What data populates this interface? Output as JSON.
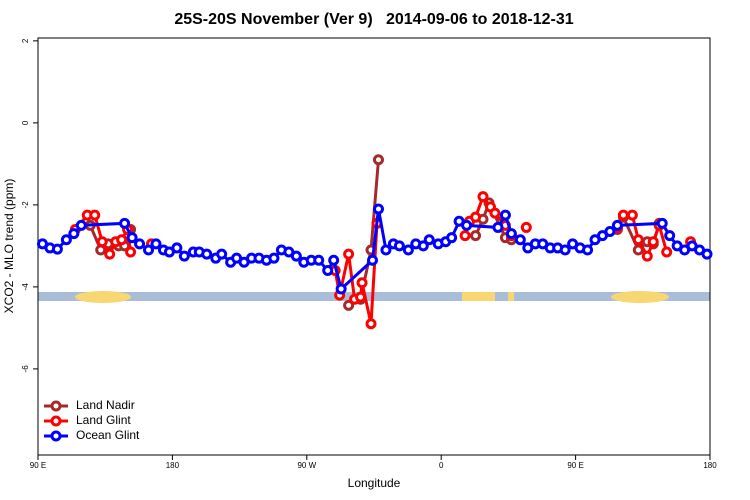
{
  "chart_data": {
    "type": "line",
    "title": "25S-20S November (Ver 9)   2014-09-06 to 2018-12-31",
    "x_label": "Longitude",
    "y_label": "XCO2 - MLO trend (ppm)",
    "xlim": [
      90,
      540
    ],
    "ylim": [
      -8.1,
      2.07
    ],
    "xticks": [
      {
        "value": 90,
        "label": "90 E"
      },
      180,
      {
        "value": 270,
        "label": "90 W"
      },
      {
        "value": 360,
        "label": "0"
      },
      {
        "value": 450,
        "label": "90 E"
      },
      {
        "value": 540,
        "label": "180"
      }
    ],
    "yticks": [
      -6,
      -4,
      -2,
      0,
      2
    ],
    "legend": "bottom-left",
    "series": [
      {
        "name": "Land Nadir",
        "color": "#a52a2a",
        "x": [
          125,
          132,
          137,
          144,
          148,
          152,
          null,
          298,
          306,
          313,
          318,
          null,
          383,
          388,
          392,
          403,
          407,
          null,
          478,
          482,
          492,
          498,
          502,
          506
        ],
        "values": [
          -2.5,
          -3.1,
          -2.95,
          -3.0,
          -3.0,
          -2.6,
          null,
          -4.45,
          -4.3,
          -3.1,
          -0.9,
          null,
          -2.75,
          -2.35,
          -1.95,
          -2.8,
          -2.85,
          null,
          -2.6,
          -2.3,
          -3.1,
          -2.9,
          -2.95,
          -2.45
        ]
      },
      {
        "name": "Land Glint",
        "color": "#ff0000",
        "x": [
          115,
          123,
          128,
          133,
          138,
          142,
          146,
          150,
          152,
          null,
          166,
          null,
          289,
          292,
          298,
          302,
          306,
          307,
          313,
          317,
          null,
          376,
          379,
          383,
          388,
          393,
          396,
          403,
          407,
          null,
          417,
          null,
          478,
          482,
          488,
          492,
          498,
          502,
          506,
          511,
          null,
          527
        ],
        "values": [
          -2.6,
          -2.25,
          -2.25,
          -2.9,
          -3.2,
          -2.9,
          -2.85,
          -2.6,
          -3.15,
          null,
          -2.95,
          null,
          -3.6,
          -4.2,
          -3.2,
          -4.3,
          -4.25,
          -3.9,
          -4.9,
          -2.45,
          null,
          -2.75,
          -2.4,
          -2.3,
          -1.8,
          -2.05,
          -2.2,
          -2.5,
          -2.75,
          null,
          -2.55,
          null,
          -2.55,
          -2.25,
          -2.25,
          -2.85,
          -3.25,
          -2.9,
          -2.5,
          -3.15,
          null,
          -2.9
        ]
      },
      {
        "name": "Ocean Glint",
        "color": "#0000ff",
        "x": [
          93,
          98,
          103,
          109,
          114,
          119,
          148,
          153,
          158,
          164,
          169,
          174,
          178,
          183,
          188,
          194,
          198,
          203,
          209,
          213,
          219,
          223,
          228,
          233,
          238,
          243,
          248,
          253,
          258,
          263,
          268,
          273,
          278,
          284,
          288,
          293,
          314,
          318,
          323,
          328,
          332,
          338,
          343,
          348,
          352,
          358,
          363,
          367,
          372,
          377,
          398,
          403,
          407,
          413,
          418,
          423,
          428,
          433,
          438,
          443,
          448,
          453,
          458,
          463,
          468,
          473,
          478,
          508,
          513,
          518,
          523,
          528,
          533,
          538
        ],
        "values": [
          -2.95,
          -3.05,
          -3.08,
          -2.85,
          -2.7,
          -2.5,
          -2.45,
          -2.8,
          -2.95,
          -3.1,
          -2.95,
          -3.1,
          -3.15,
          -3.05,
          -3.25,
          -3.15,
          -3.15,
          -3.2,
          -3.3,
          -3.2,
          -3.4,
          -3.3,
          -3.4,
          -3.3,
          -3.3,
          -3.35,
          -3.3,
          -3.1,
          -3.15,
          -3.25,
          -3.4,
          -3.35,
          -3.35,
          -3.6,
          -3.35,
          -4.05,
          -3.35,
          -2.1,
          -3.1,
          -2.95,
          -3.0,
          -3.1,
          -2.95,
          -3.0,
          -2.85,
          -2.95,
          -2.9,
          -2.8,
          -2.4,
          -2.5,
          -2.55,
          -2.25,
          -2.7,
          -2.85,
          -3.05,
          -2.95,
          -2.95,
          -3.05,
          -3.05,
          -3.1,
          -2.95,
          -3.05,
          -3.1,
          -2.85,
          -2.75,
          -2.65,
          -2.5,
          -2.45,
          -2.75,
          -3.0,
          -3.1,
          -3.0,
          -3.1,
          -3.2
        ]
      }
    ]
  }
}
